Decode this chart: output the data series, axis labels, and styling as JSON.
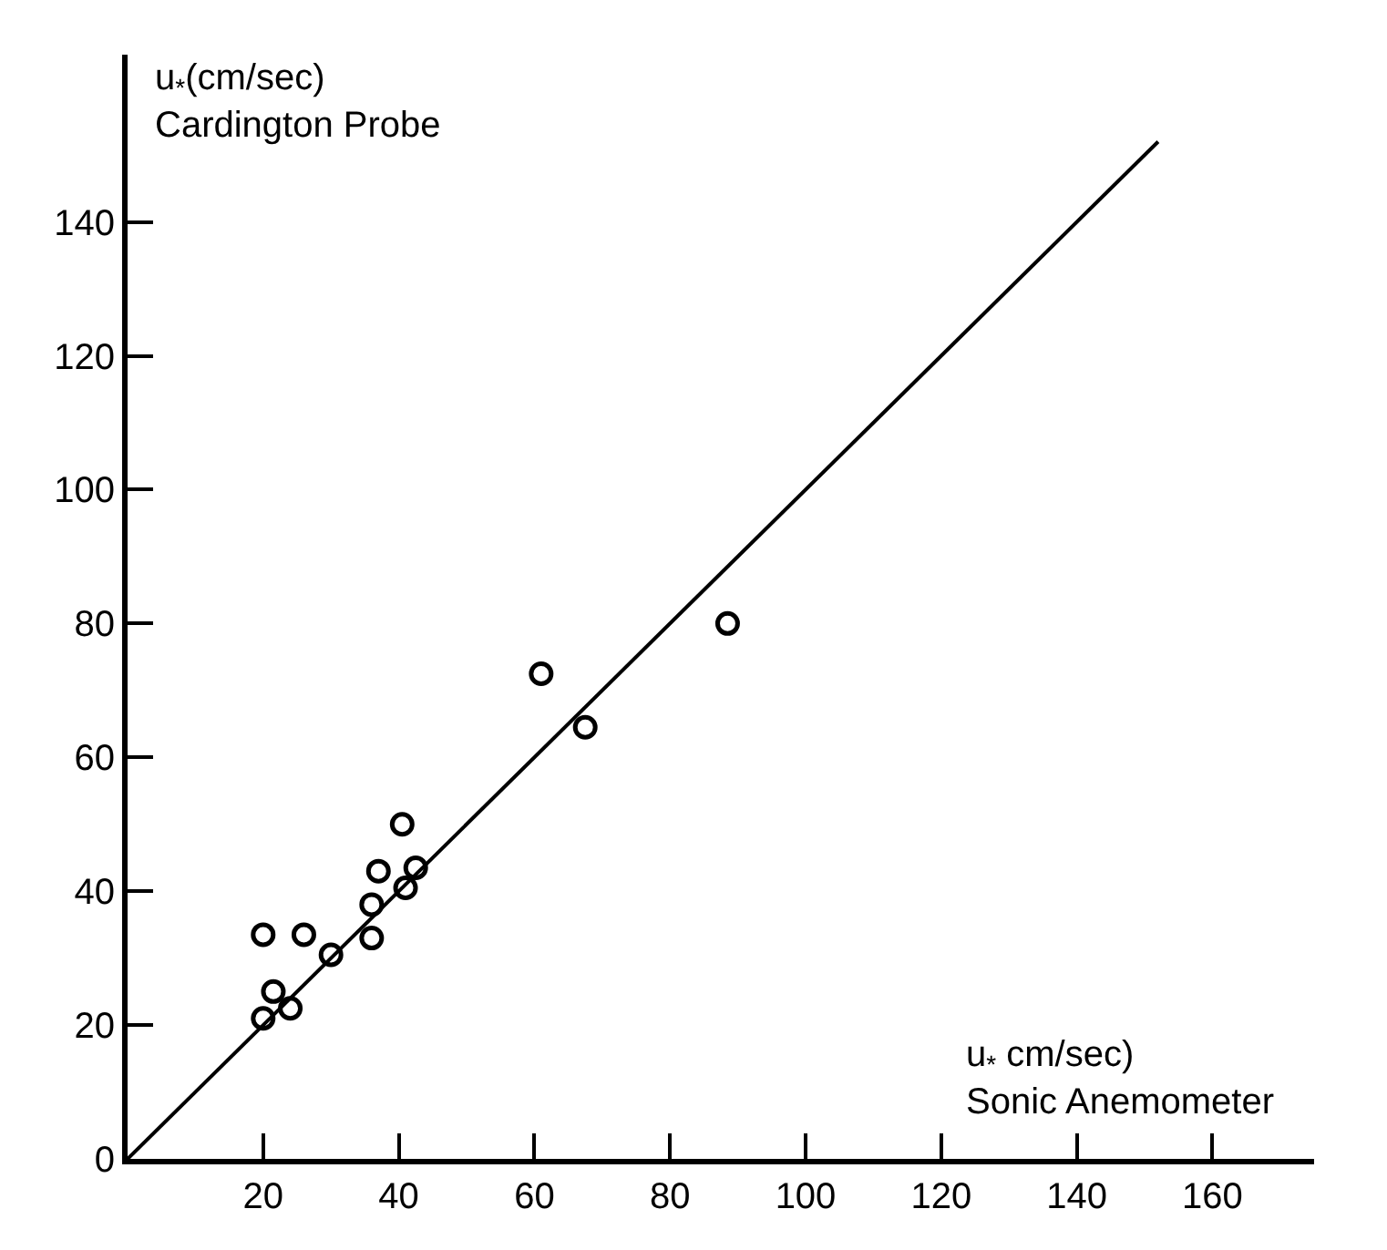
{
  "chart_data": {
    "type": "scatter",
    "xlabel": "u$_{*}$ cm/sec)\nSonic Anemometer",
    "ylabel": "u$_{*}$(cm/sec)\nCardington Probe",
    "x": [
      20,
      26,
      21.5,
      20,
      24,
      30,
      36,
      36,
      37,
      40.5,
      41,
      42.5,
      61,
      67.5,
      88.5
    ],
    "series": [
      {
        "color": "#000000",
        "marker": "circle",
        "values": [
          33.5,
          33.5,
          25,
          21,
          22.5,
          30.5,
          33,
          38,
          43,
          50,
          40.5,
          43.5,
          72.5,
          64.5,
          80
        ]
      },
      {
        "type": "line",
        "color": "#000000",
        "line_style": "solid",
        "x": [
          0,
          152
        ],
        "values": [
          0,
          152
        ]
      }
    ],
    "xlim": [
      0,
      175
    ],
    "ylim": [
      0,
      165
    ],
    "xticks": [
      20,
      40,
      60,
      80,
      100,
      120,
      140,
      160
    ],
    "yticks": [
      0,
      20,
      40,
      60,
      80,
      100,
      120,
      140
    ],
    "grid": false
  }
}
